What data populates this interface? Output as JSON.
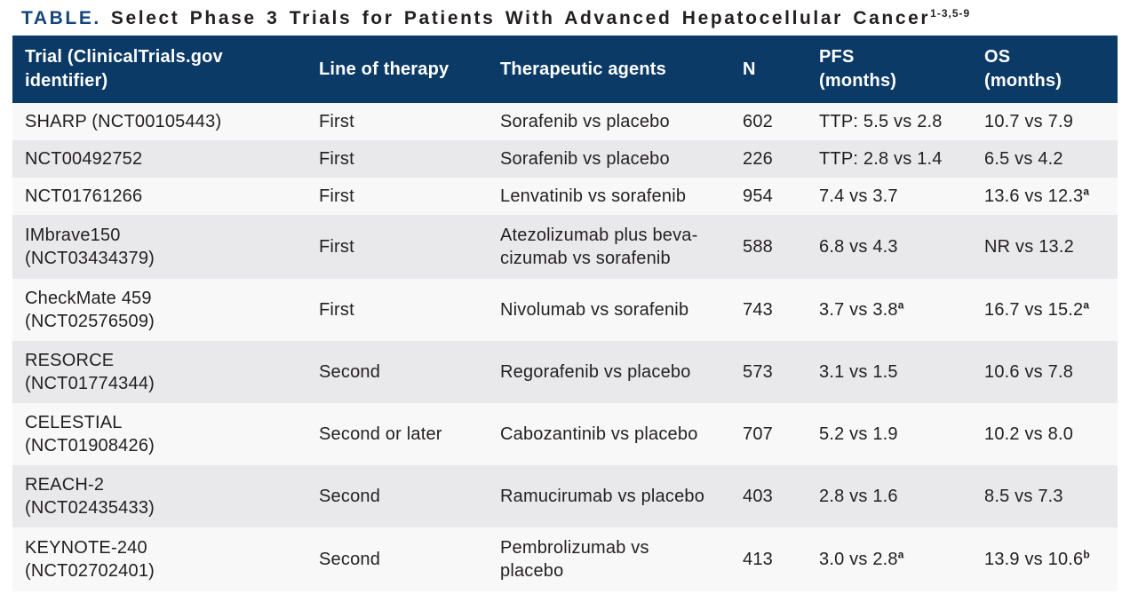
{
  "title": {
    "label": "TABLE.",
    "text": "Select Phase 3 Trials for Patients With Advanced Hepatocellular Cancer",
    "citation_sup": "1-3,5-9"
  },
  "colors": {
    "header_background": "#0b3a67",
    "header_text": "#ffffff",
    "title_accent": "#15457a",
    "body_text": "#231f20",
    "row_odd": "#f8f8f9",
    "row_even": "#e9e9eb"
  },
  "table": {
    "columns": [
      {
        "label": "Trial (ClinicalTrials.gov\nidentifier)"
      },
      {
        "label": "Line of therapy"
      },
      {
        "label": "Therapeutic agents"
      },
      {
        "label": "N"
      },
      {
        "label": "PFS\n(months)"
      },
      {
        "label": "OS\n(months)"
      }
    ],
    "rows": [
      {
        "trial": "SHARP (NCT00105443)",
        "line_of_therapy": "First",
        "agents": "Sorafenib vs placebo",
        "n": "602",
        "pfs": "TTP: 5.5 vs 2.8",
        "pfs_sup": "",
        "os": "10.7 vs 7.9",
        "os_sup": ""
      },
      {
        "trial": "NCT00492752",
        "line_of_therapy": "First",
        "agents": "Sorafenib vs placebo",
        "n": "226",
        "pfs": "TTP: 2.8 vs 1.4",
        "pfs_sup": "",
        "os": "6.5 vs 4.2",
        "os_sup": ""
      },
      {
        "trial": "NCT01761266",
        "line_of_therapy": "First",
        "agents": "Lenvatinib vs sorafenib",
        "n": "954",
        "pfs": "7.4 vs 3.7",
        "pfs_sup": "",
        "os": "13.6 vs 12.3",
        "os_sup": "a"
      },
      {
        "trial": "IMbrave150\n(NCT03434379)",
        "line_of_therapy": "First",
        "agents": "Atezolizumab plus beva-\ncizumab vs sorafenib",
        "n": "588",
        "pfs": "6.8 vs 4.3",
        "pfs_sup": "",
        "os": "NR vs 13.2",
        "os_sup": ""
      },
      {
        "trial": "CheckMate 459\n(NCT02576509)",
        "line_of_therapy": "First",
        "agents": "Nivolumab vs sorafenib",
        "n": "743",
        "pfs": "3.7 vs 3.8",
        "pfs_sup": "a",
        "os": "16.7 vs 15.2",
        "os_sup": "a"
      },
      {
        "trial": "RESORCE\n(NCT01774344)",
        "line_of_therapy": "Second",
        "agents": "Regorafenib vs placebo",
        "n": "573",
        "pfs": "3.1 vs 1.5",
        "pfs_sup": "",
        "os": "10.6 vs 7.8",
        "os_sup": ""
      },
      {
        "trial": "CELESTIAL\n(NCT01908426)",
        "line_of_therapy": "Second or later",
        "agents": "Cabozantinib vs placebo",
        "n": "707",
        "pfs": "5.2 vs 1.9",
        "pfs_sup": "",
        "os": "10.2 vs 8.0",
        "os_sup": ""
      },
      {
        "trial": "REACH-2\n(NCT02435433)",
        "line_of_therapy": "Second",
        "agents": "Ramucirumab vs placebo",
        "n": "403",
        "pfs": "2.8 vs 1.6",
        "pfs_sup": "",
        "os": "8.5 vs 7.3",
        "os_sup": ""
      },
      {
        "trial": "KEYNOTE-240\n(NCT02702401)",
        "line_of_therapy": "Second",
        "agents": "Pembrolizumab vs\nplacebo",
        "n": "413",
        "pfs": "3.0 vs 2.8",
        "pfs_sup": "a",
        "os": "13.9 vs 10.6",
        "os_sup": "b"
      }
    ]
  }
}
